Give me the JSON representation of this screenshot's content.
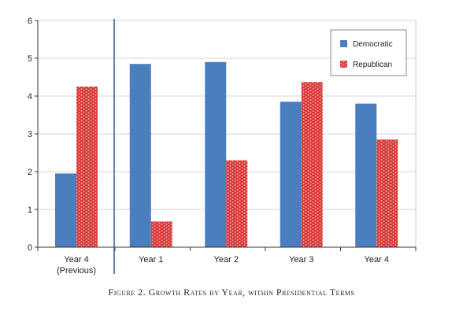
{
  "chart_data": {
    "type": "bar",
    "categories": [
      "Year 4\n(Previous)",
      "Year 1",
      "Year 2",
      "Year 3",
      "Year 4"
    ],
    "series": [
      {
        "name": "Democratic",
        "values": [
          1.95,
          4.85,
          4.9,
          3.85,
          3.8
        ],
        "color": "#4a7ebf"
      },
      {
        "name": "Republican",
        "values": [
          4.25,
          0.68,
          2.3,
          4.37,
          2.85
        ],
        "color": "#d93a3a"
      }
    ],
    "title": "",
    "xlabel": "",
    "ylabel": "",
    "ylim": [
      0,
      6
    ],
    "yticks": [
      0,
      1,
      2,
      3,
      4,
      5,
      6
    ],
    "grid": "horizontal",
    "legend": "top-right",
    "divider_after_category": 0
  },
  "caption": "Figure 2. Growth Rates by Year, within Presidential Terms"
}
